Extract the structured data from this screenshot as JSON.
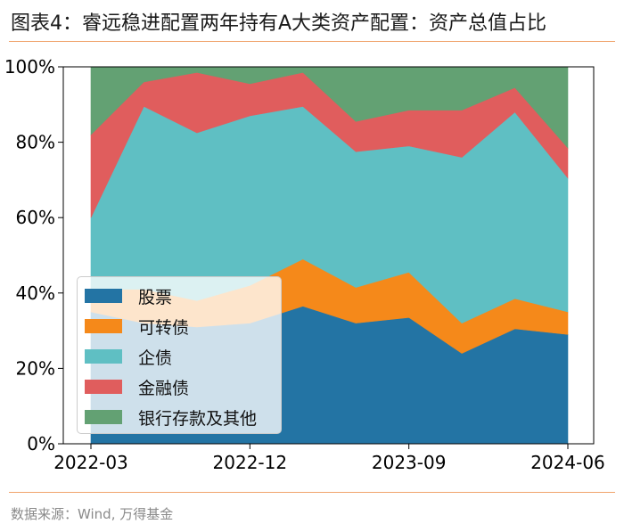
{
  "header": {
    "title": "图表4：睿远稳进配置两年持有A大类资产配置：资产总值占比"
  },
  "footer": {
    "source": "数据来源：Wind, 万得基金"
  },
  "colors": {
    "stock": "#2374a4",
    "convertible": "#f5891a",
    "corporate_bond": "#5fbfc3",
    "financial_bond": "#e05d5d",
    "deposits_other": "#63a173",
    "rule": "#f0a46c"
  },
  "chart_data": {
    "type": "area",
    "stacked": true,
    "title": "",
    "xlabel": "",
    "ylabel": "",
    "ylim": [
      0,
      100
    ],
    "yticks": [
      "0%",
      "20%",
      "40%",
      "60%",
      "80%",
      "100%"
    ],
    "ytick_values": [
      0,
      20,
      40,
      60,
      80,
      100
    ],
    "x": [
      "2022-03",
      "2022-06",
      "2022-09",
      "2022-12",
      "2023-03",
      "2023-06",
      "2023-09",
      "2023-12",
      "2024-03",
      "2024-06"
    ],
    "xticks": [
      "2022-03",
      "2022-12",
      "2023-09",
      "2024-06"
    ],
    "grid": false,
    "legend_position": "lower-left",
    "series": [
      {
        "name": "股票",
        "color_key": "stock",
        "values": [
          35,
          32,
          31,
          32,
          36.5,
          32,
          33.5,
          24,
          30.5,
          29
        ]
      },
      {
        "name": "可转债",
        "color_key": "convertible",
        "values": [
          6,
          9,
          7,
          10,
          12.5,
          9.5,
          12,
          8,
          8,
          6
        ]
      },
      {
        "name": "企债",
        "color_key": "corporate_bond",
        "values": [
          19,
          48.5,
          44.5,
          45,
          40.5,
          36,
          33.5,
          44,
          49.5,
          35.5
        ]
      },
      {
        "name": "金融债",
        "color_key": "financial_bond",
        "values": [
          22,
          6.5,
          16,
          8.5,
          9,
          8,
          9.5,
          12.5,
          6.5,
          8
        ]
      },
      {
        "name": "银行存款及其他",
        "color_key": "deposits_other",
        "values": [
          18,
          4,
          1.5,
          4.5,
          1.5,
          14.5,
          11.5,
          11.5,
          5.5,
          21.5
        ]
      }
    ]
  }
}
